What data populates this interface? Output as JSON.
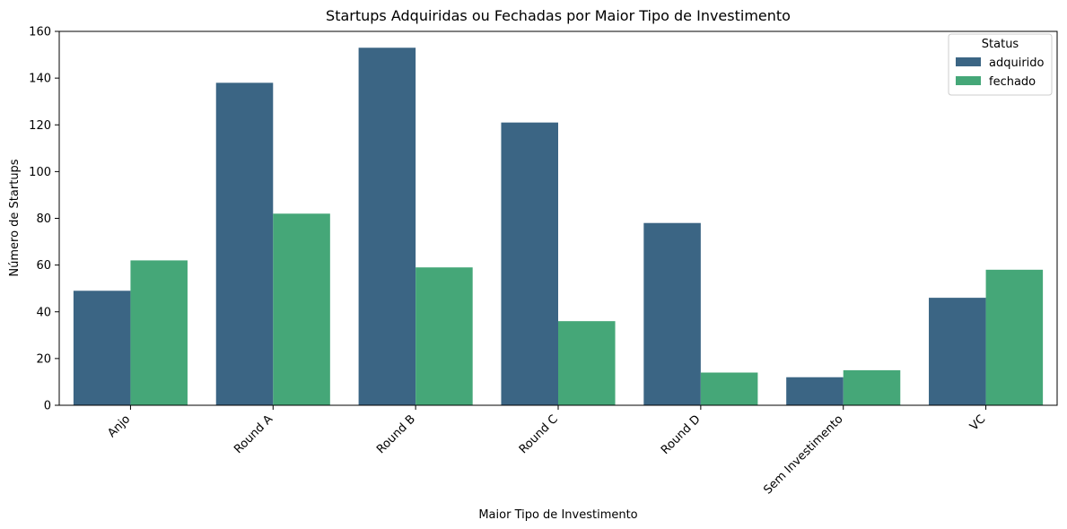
{
  "chart_data": {
    "type": "bar",
    "title": "Startups Adquiridas ou Fechadas por Maior Tipo de Investimento",
    "xlabel": "Maior Tipo de Investimento",
    "ylabel": "Número de Startups",
    "categories": [
      "Anjo",
      "Round A",
      "Round B",
      "Round C",
      "Round D",
      "Sem Investimento",
      "VC"
    ],
    "series": [
      {
        "name": "adquirido",
        "color": "#3b6584",
        "values": [
          49,
          138,
          153,
          121,
          78,
          12,
          46
        ]
      },
      {
        "name": "fechado",
        "color": "#45a778",
        "values": [
          62,
          82,
          59,
          36,
          14,
          15,
          58
        ]
      }
    ],
    "ylim": [
      0,
      160
    ],
    "yticks": [
      0,
      20,
      40,
      60,
      80,
      100,
      120,
      140,
      160
    ],
    "grid": false,
    "legend": {
      "title": "Status",
      "placement": "top-right"
    }
  }
}
